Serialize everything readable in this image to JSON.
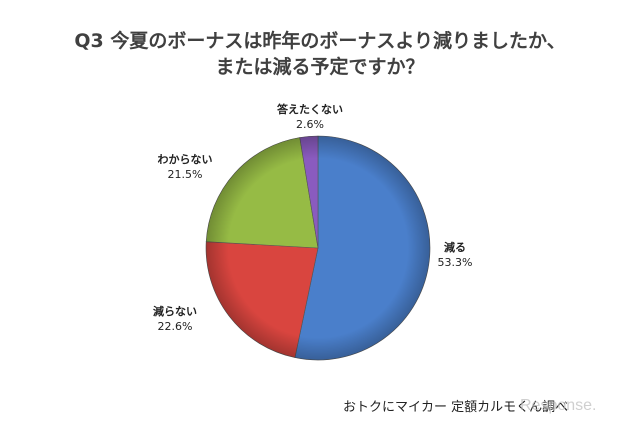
{
  "title": {
    "line1": "Q3 今夏のボーナスは昨年のボーナスより減りましたか、",
    "line2": "または減る予定ですか？"
  },
  "chart_data": {
    "type": "pie",
    "title": "Q3 今夏のボーナスは昨年のボーナスより減りましたか、または減る予定ですか？",
    "categories": [
      "減る",
      "減らない",
      "わからない",
      "答えたくない"
    ],
    "values": [
      53.3,
      22.6,
      21.5,
      2.6
    ],
    "unit": "%",
    "colors": [
      "#4a7fcb",
      "#d9453f",
      "#96bb45",
      "#8a5bbf"
    ],
    "start_angle": "12 o'clock, clockwise",
    "legend": "none (data labels outside slices)"
  },
  "labels": [
    {
      "name": "減る",
      "value": "53.3%"
    },
    {
      "name": "減らない",
      "value": "22.6%"
    },
    {
      "name": "わからない",
      "value": "21.5%"
    },
    {
      "name": "答えたくない",
      "value": "2.6%"
    }
  ],
  "source": "おトクにマイカー 定額カルモくん調べ",
  "watermark": "Response."
}
